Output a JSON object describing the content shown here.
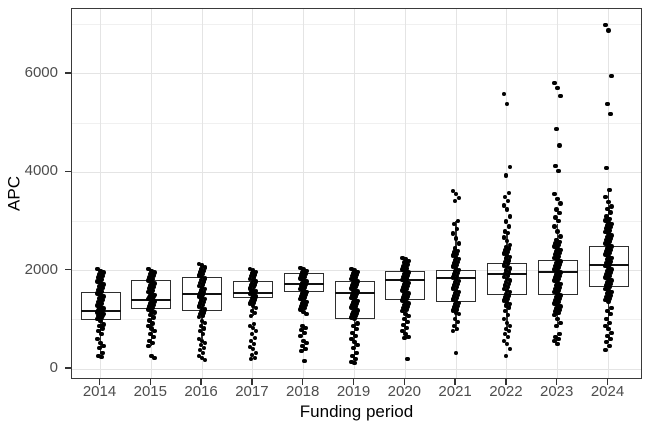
{
  "figure": {
    "background": "#ffffff",
    "panel_border_color": "#3a3a3a",
    "grid_major_color": "#e4e4e4",
    "grid_minor_color": "#f0f0f0",
    "tick_color": "#333333",
    "tick_label_color": "#4d4d4d",
    "axis_title_color": "#000000",
    "point_color": "#000000",
    "box_border_color": "#2f2f2f",
    "median_color": "#111111"
  },
  "chart_data": {
    "type": "boxplot",
    "title": "",
    "xlabel": "Funding period",
    "ylabel": "APC",
    "x_categories": [
      "2014",
      "2015",
      "2016",
      "2017",
      "2018",
      "2019",
      "2020",
      "2021",
      "2022",
      "2023",
      "2024"
    ],
    "y_tick_labels": [
      "0",
      "2000",
      "4000",
      "6000"
    ],
    "y_ticks": [
      0,
      2000,
      4000,
      6000
    ],
    "y_minor_ticks": [
      1000,
      3000,
      5000,
      7000
    ],
    "ylim": [
      -225,
      7320
    ],
    "grid": true,
    "legend": "none",
    "boxes": [
      {
        "label": "2014",
        "whisker_low": 305,
        "q1": 1000,
        "median": 1180,
        "q3": 1565,
        "whisker_high": 2030,
        "points": [
          2030,
          1995,
          1960,
          1925,
          1890,
          1855,
          1820,
          1785,
          1750,
          1715,
          1680,
          1645,
          1610,
          1575,
          1540,
          1505,
          1470,
          1435,
          1400,
          1365,
          1330,
          1295,
          1260,
          1230,
          1225,
          1200,
          1190,
          1170,
          1155,
          1140,
          1120,
          1110,
          1085,
          1080,
          1050,
          1015,
          980,
          900,
          875,
          820,
          773,
          712,
          610,
          529,
          468,
          427,
          325,
          264,
          240
        ]
      },
      {
        "label": "2015",
        "whisker_low": 468,
        "q1": 1220,
        "median": 1400,
        "q3": 1810,
        "whisker_high": 2030,
        "points": [
          2030,
          1997,
          1964,
          1931,
          1898,
          1865,
          1832,
          1799,
          1766,
          1733,
          1700,
          1667,
          1634,
          1601,
          1568,
          1535,
          1502,
          1490,
          1469,
          1455,
          1436,
          1420,
          1403,
          1370,
          1337,
          1304,
          1271,
          1238,
          1205,
          1172,
          1150,
          1100,
          1050,
          990,
          930,
          875,
          820,
          770,
          712,
          650,
          570,
          529,
          468,
          264,
          224
        ]
      },
      {
        "label": "2016",
        "whisker_low": 610,
        "q1": 1180,
        "median": 1525,
        "q3": 1870,
        "whisker_high": 2136,
        "points": [
          2136,
          2100,
          2060,
          2020,
          1990,
          1960,
          1930,
          1900,
          1870,
          1840,
          1810,
          1780,
          1750,
          1720,
          1690,
          1660,
          1630,
          1600,
          1570,
          1540,
          1510,
          1480,
          1450,
          1420,
          1390,
          1360,
          1330,
          1300,
          1270,
          1240,
          1210,
          1180,
          1150,
          1120,
          1090,
          1060,
          980,
          936,
          875,
          820,
          773,
          712,
          610,
          570,
          529,
          488,
          427,
          386,
          325,
          264,
          224,
          183
        ]
      },
      {
        "label": "2017",
        "whisker_low": 1078,
        "q1": 1440,
        "median": 1550,
        "q3": 1780,
        "whisker_high": 2030,
        "points": [
          2030,
          2002,
          1974,
          1946,
          1918,
          1890,
          1862,
          1834,
          1806,
          1778,
          1750,
          1722,
          1694,
          1666,
          1638,
          1610,
          1590,
          1582,
          1560,
          1554,
          1530,
          1526,
          1498,
          1470,
          1442,
          1414,
          1386,
          1358,
          1330,
          1281,
          1241,
          1180,
          1139,
          1078,
          915,
          875,
          834,
          773,
          712,
          630,
          570,
          509,
          447,
          407,
          325,
          285,
          224,
          203
        ]
      },
      {
        "label": "2018",
        "whisker_low": 1160,
        "q1": 1565,
        "median": 1730,
        "q3": 1950,
        "whisker_high": 2054,
        "points": [
          2054,
          2020,
          1990,
          1960,
          1930,
          1900,
          1870,
          1840,
          1810,
          1780,
          1750,
          1720,
          1690,
          1660,
          1630,
          1600,
          1570,
          1540,
          1510,
          1480,
          1450,
          1420,
          1390,
          1360,
          1330,
          1300,
          1270,
          1240,
          1210,
          1160,
          1119,
          875,
          834,
          793,
          732,
          671,
          570,
          529,
          468,
          407,
          366,
          163
        ]
      },
      {
        "label": "2019",
        "whisker_low": 203,
        "q1": 1017,
        "median": 1550,
        "q3": 1790,
        "whisker_high": 2030,
        "points": [
          2030,
          2002,
          1974,
          1946,
          1918,
          1890,
          1862,
          1834,
          1806,
          1778,
          1750,
          1722,
          1694,
          1666,
          1638,
          1610,
          1582,
          1554,
          1526,
          1498,
          1470,
          1442,
          1414,
          1386,
          1358,
          1330,
          1302,
          1274,
          1246,
          1218,
          1190,
          1162,
          1134,
          1106,
          1078,
          1050,
          1022,
          930,
          875,
          813,
          732,
          671,
          610,
          550,
          488,
          427,
          325,
          264,
          203,
          140,
          122
        ]
      },
      {
        "label": "2020",
        "whisker_low": 650,
        "q1": 1403,
        "median": 1810,
        "q3": 1990,
        "whisker_high": 2257,
        "points": [
          2257,
          2237,
          2200,
          2160,
          2120,
          2080,
          2040,
          2020,
          1990,
          1960,
          1930,
          1900,
          1870,
          1840,
          1810,
          1780,
          1750,
          1720,
          1690,
          1660,
          1630,
          1600,
          1570,
          1540,
          1510,
          1480,
          1450,
          1420,
          1390,
          1360,
          1330,
          1300,
          1270,
          1240,
          1210,
          1180,
          1119,
          1078,
          1017,
          956,
          895,
          834,
          773,
          712,
          650,
          630,
          203
        ]
      },
      {
        "label": "2021",
        "whisker_low": 773,
        "q1": 1363,
        "median": 1850,
        "q3": 2014,
        "whisker_high": 3010,
        "points": [
          3620,
          3560,
          3480,
          3420,
          3010,
          2950,
          2848,
          2750,
          2650,
          2550,
          2450,
          2400,
          2368,
          2336,
          2304,
          2272,
          2240,
          2208,
          2176,
          2144,
          2112,
          2080,
          2048,
          2016,
          1984,
          1952,
          1920,
          1888,
          1856,
          1824,
          1792,
          1760,
          1728,
          1696,
          1664,
          1632,
          1600,
          1568,
          1536,
          1504,
          1472,
          1440,
          1408,
          1376,
          1344,
          1312,
          1280,
          1248,
          1216,
          1184,
          1152,
          1120,
          1017,
          956,
          875,
          813,
          773,
          325
        ]
      },
      {
        "label": "2022",
        "whisker_low": 773,
        "q1": 1505,
        "median": 1932,
        "q3": 2160,
        "whisker_high": 2766,
        "points": [
          5590,
          5390,
          4110,
          3930,
          3580,
          3500,
          3420,
          3330,
          3250,
          3100,
          3000,
          2900,
          2800,
          2766,
          2680,
          2600,
          2520,
          2480,
          2446,
          2412,
          2378,
          2344,
          2310,
          2276,
          2242,
          2208,
          2174,
          2140,
          2106,
          2072,
          2038,
          2004,
          1970,
          1936,
          1902,
          1868,
          1834,
          1800,
          1766,
          1732,
          1698,
          1664,
          1630,
          1596,
          1562,
          1528,
          1494,
          1460,
          1426,
          1392,
          1358,
          1324,
          1290,
          1256,
          1180,
          1100,
          1017,
          936,
          875,
          813,
          773,
          712,
          650,
          570,
          508,
          407,
          264
        ]
      },
      {
        "label": "2023",
        "whisker_low": 870,
        "q1": 1505,
        "median": 1973,
        "q3": 2220,
        "whisker_high": 2950,
        "points": [
          5820,
          5715,
          5550,
          4880,
          4540,
          4130,
          4030,
          3560,
          3460,
          3360,
          3250,
          3170,
          3080,
          3010,
          2900,
          2800,
          2700,
          2620,
          2587,
          2554,
          2521,
          2488,
          2455,
          2422,
          2389,
          2356,
          2323,
          2290,
          2257,
          2224,
          2191,
          2158,
          2125,
          2092,
          2059,
          2026,
          1993,
          1960,
          1927,
          1894,
          1861,
          1828,
          1795,
          1762,
          1729,
          1696,
          1663,
          1630,
          1597,
          1564,
          1531,
          1498,
          1465,
          1432,
          1399,
          1366,
          1333,
          1300,
          1267,
          1234,
          1201,
          1168,
          1135,
          1102,
          1017,
          936,
          875,
          712,
          650,
          610,
          570,
          508
        ]
      },
      {
        "label": "2024",
        "whisker_low": 810,
        "q1": 1668,
        "median": 2110,
        "q3": 2500,
        "whisker_high": 3641,
        "points": [
          7000,
          6880,
          5960,
          5390,
          5190,
          4090,
          3641,
          3500,
          3400,
          3300,
          3255,
          3180,
          3100,
          3050,
          3017,
          2984,
          2951,
          2918,
          2885,
          2852,
          2819,
          2786,
          2753,
          2720,
          2687,
          2654,
          2621,
          2588,
          2555,
          2522,
          2489,
          2456,
          2423,
          2390,
          2357,
          2324,
          2291,
          2258,
          2225,
          2192,
          2159,
          2126,
          2093,
          2060,
          2027,
          1994,
          1961,
          1928,
          1895,
          1862,
          1829,
          1796,
          1763,
          1730,
          1697,
          1664,
          1631,
          1598,
          1565,
          1532,
          1499,
          1466,
          1433,
          1400,
          1367,
          1241,
          1180,
          1119,
          1017,
          936,
          875,
          813,
          732,
          671,
          610,
          550,
          468,
          386
        ]
      }
    ]
  }
}
